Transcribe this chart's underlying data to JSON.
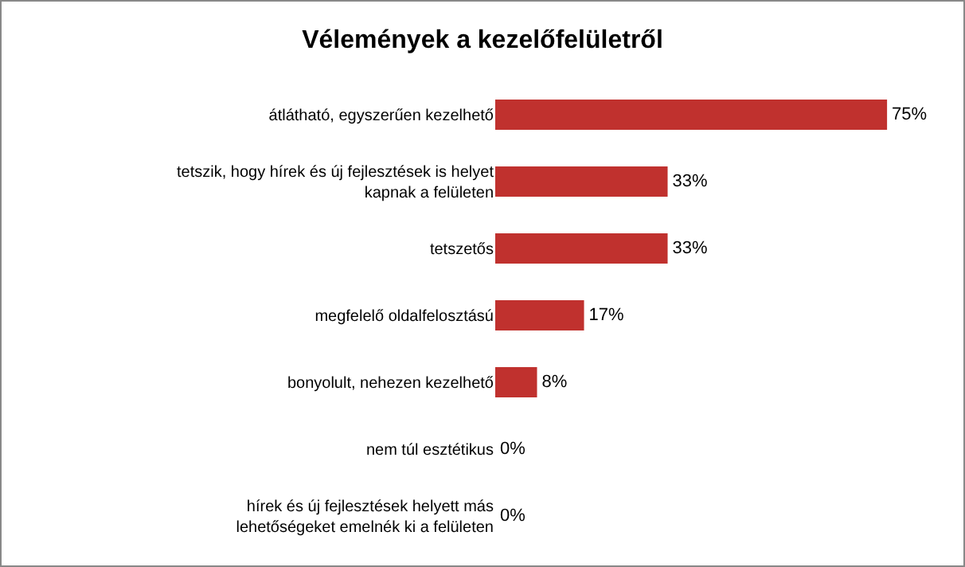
{
  "chart_data": {
    "type": "bar",
    "orientation": "horizontal",
    "title": "Vélemények a kezelőfelületről",
    "categories": [
      "átlátható, egyszerűen kezelhető",
      "tetszik, hogy hírek és új fejlesztések is helyet kapnak a felületen",
      "tetszetős",
      "megfelelő oldalfelosztású",
      "bonyolult, nehezen kezelhető",
      "nem túl esztétikus",
      "hírek és új fejlesztések helyett más lehetőségeket emelnék ki a felületen"
    ],
    "values": [
      75,
      33,
      33,
      17,
      8,
      0,
      0
    ],
    "value_labels": [
      "75%",
      "33%",
      "33%",
      "17%",
      "8%",
      "0%",
      "0%"
    ],
    "color": "#c0312e"
  }
}
